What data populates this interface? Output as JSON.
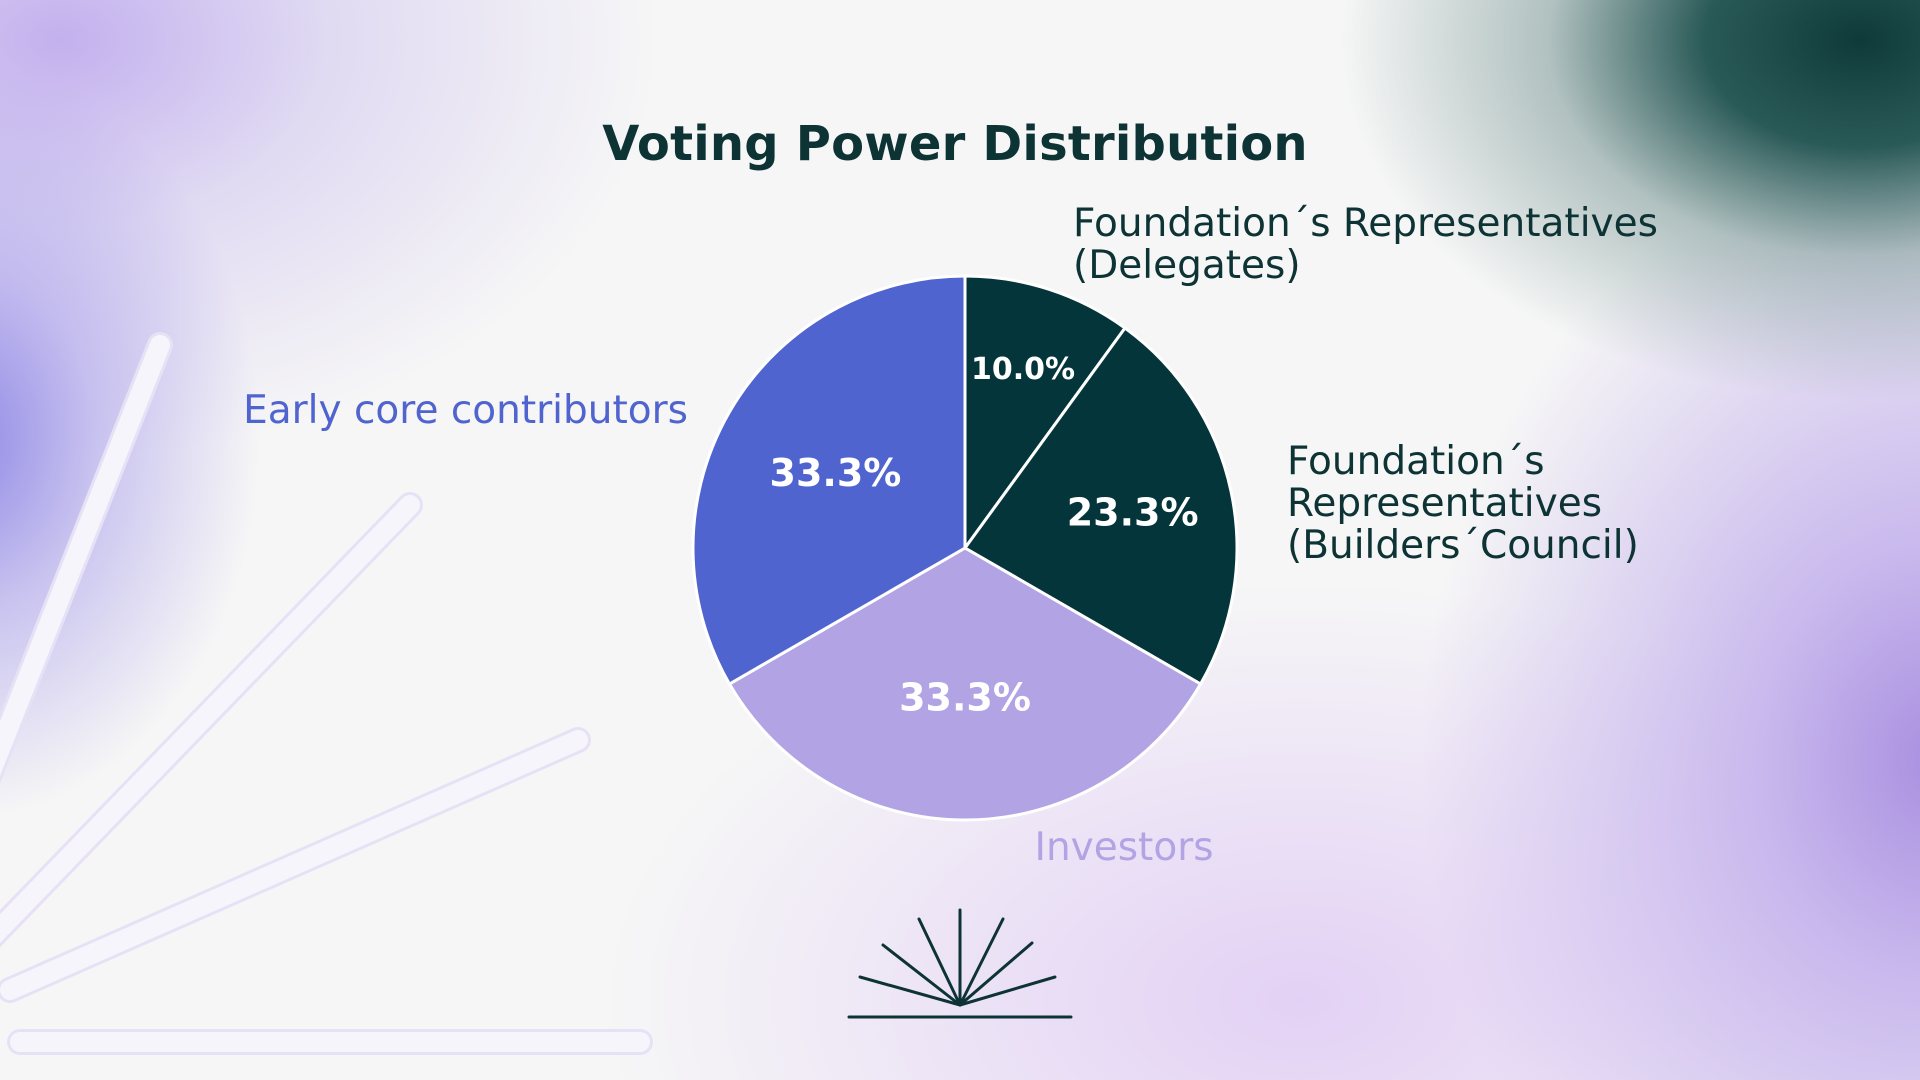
{
  "chart_data": {
    "type": "pie",
    "title": "Voting Power Distribution",
    "slices": [
      {
        "label": "Foundation´s Representatives (Delegates)",
        "label_lines": [
          "Foundation´s Representatives",
          "(Delegates)"
        ],
        "value": 10.0,
        "value_label": "10.0%",
        "color": "#03353a",
        "label_color": "#0d3335"
      },
      {
        "label": "Foundation´s Representatives (Builders´Council)",
        "label_lines": [
          "Foundation´s",
          "Representatives",
          "(Builders´Council)"
        ],
        "value": 23.3,
        "value_label": "23.3%",
        "color": "#03353a",
        "label_color": "#0d3335"
      },
      {
        "label": "Investors",
        "label_lines": [
          "Investors"
        ],
        "value": 33.3,
        "value_label": "33.3%",
        "color": "#b2a4e4",
        "label_color": "#b2a4e4"
      },
      {
        "label": "Early core contributors",
        "label_lines": [
          "Early core contributors"
        ],
        "value": 33.3,
        "value_label": "33.3%",
        "color": "#5064cf",
        "label_color": "#5064cf"
      }
    ],
    "start_angle": "12 o'clock",
    "direction": "clockwise",
    "legend": "labels placed outside next to each slice",
    "slice_border_color": "#ffffff"
  },
  "colors": {
    "title": "#0d3335",
    "dark_teal": "#03353a",
    "periwinkle": "#5064cf",
    "lavender": "#b2a4e4",
    "background": "#f6f6f6"
  },
  "decorations": {
    "logo_icon": "sunrise-rays-icon",
    "background_lines_icon": "diagonal-rays-decoration"
  }
}
